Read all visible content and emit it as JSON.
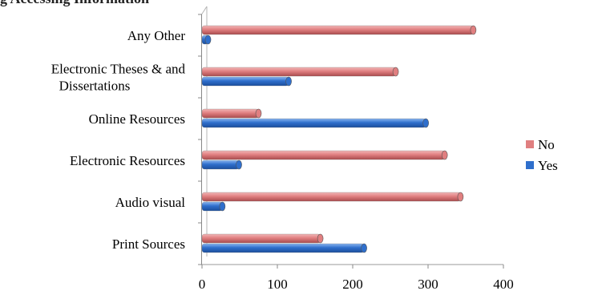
{
  "title_fragment": "g Accessing Information",
  "chart_data": {
    "type": "bar",
    "orientation": "horizontal",
    "categories": [
      "Print Sources",
      "Audio visual",
      "Electronic Resources",
      "Online Resources",
      "Electronic Theses & and Dissertations",
      "Any Other"
    ],
    "category_lines": [
      [
        "Print Sources"
      ],
      [
        "Audio visual"
      ],
      [
        "Electronic Resources"
      ],
      [
        "Online Resources"
      ],
      [
        "Electronic Theses & and",
        "Dissertations"
      ],
      [
        "Any Other"
      ]
    ],
    "series": [
      {
        "name": "Yes",
        "color": "#2f6fcc",
        "values": [
          215,
          27,
          49,
          297,
          115,
          8
        ]
      },
      {
        "name": "No",
        "color": "#e07f80",
        "values": [
          157,
          343,
          322,
          75,
          257,
          360
        ]
      }
    ],
    "xlim": [
      0,
      400
    ],
    "xticks": [
      "0",
      "100",
      "200",
      "300",
      "400"
    ],
    "grid": false,
    "legend_position": "right"
  }
}
